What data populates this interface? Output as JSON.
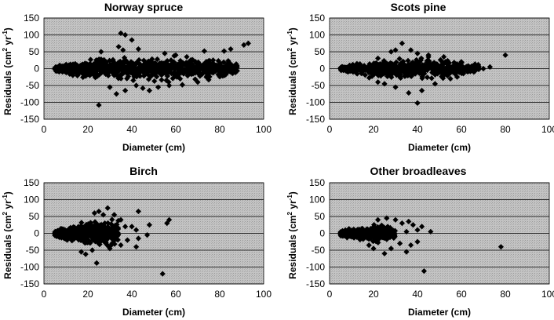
{
  "chart_data": [
    {
      "type": "scatter",
      "title": "Norway spruce",
      "xlabel": "Diameter (cm)",
      "ylabel_parts": [
        "Residuals (cm",
        "2",
        " yr",
        "-1",
        ")"
      ],
      "xlim": [
        0,
        100
      ],
      "ylim": [
        -150,
        150
      ],
      "xticks": [
        0,
        20,
        40,
        60,
        80,
        100
      ],
      "yticks": [
        150,
        100,
        50,
        0,
        -50,
        -100,
        -150
      ],
      "grid": "horizontal",
      "background": "#c0c0c0",
      "marker": "diamond",
      "marker_color": "#000000",
      "cloud": {
        "xmin": 5,
        "xmax": 88,
        "n": 900,
        "spread": [
          [
            5,
            4
          ],
          [
            20,
            16
          ],
          [
            40,
            20
          ],
          [
            60,
            18
          ],
          [
            80,
            14
          ],
          [
            88,
            8
          ]
        ]
      },
      "points": [
        [
          35,
          105
        ],
        [
          37,
          100
        ],
        [
          40,
          85
        ],
        [
          34,
          65
        ],
        [
          43,
          58
        ],
        [
          36,
          55
        ],
        [
          26,
          50
        ],
        [
          73,
          52
        ],
        [
          82,
          52
        ],
        [
          85,
          58
        ],
        [
          91,
          70
        ],
        [
          93,
          75
        ],
        [
          60,
          40
        ],
        [
          65,
          35
        ],
        [
          77,
          25
        ],
        [
          55,
          45
        ],
        [
          25,
          -108
        ],
        [
          33,
          -75
        ],
        [
          37,
          -65
        ],
        [
          45,
          -58
        ],
        [
          48,
          -65
        ],
        [
          52,
          -55
        ],
        [
          57,
          -50
        ],
        [
          63,
          -48
        ],
        [
          70,
          -40
        ],
        [
          75,
          -33
        ],
        [
          42,
          -50
        ],
        [
          30,
          -55
        ],
        [
          62,
          -30
        ]
      ]
    },
    {
      "type": "scatter",
      "title": "Scots pine",
      "xlabel": "Diameter (cm)",
      "ylabel_parts": [
        "Residuals (cm",
        "2",
        " yr",
        "-1",
        ")"
      ],
      "xlim": [
        0,
        100
      ],
      "ylim": [
        -150,
        150
      ],
      "xticks": [
        0,
        20,
        40,
        60,
        80,
        100
      ],
      "yticks": [
        150,
        100,
        50,
        0,
        -50,
        -100,
        -150
      ],
      "grid": "horizontal",
      "background": "#c0c0c0",
      "marker": "diamond",
      "marker_color": "#000000",
      "cloud": {
        "xmin": 5,
        "xmax": 68,
        "n": 650,
        "spread": [
          [
            5,
            3
          ],
          [
            20,
            14
          ],
          [
            35,
            18
          ],
          [
            50,
            16
          ],
          [
            60,
            12
          ],
          [
            68,
            8
          ]
        ]
      },
      "points": [
        [
          33,
          75
        ],
        [
          30,
          55
        ],
        [
          28,
          50
        ],
        [
          37,
          55
        ],
        [
          40,
          45
        ],
        [
          45,
          40
        ],
        [
          52,
          35
        ],
        [
          80,
          40
        ],
        [
          73,
          5
        ],
        [
          70,
          0
        ],
        [
          40,
          -102
        ],
        [
          36,
          -72
        ],
        [
          42,
          -65
        ],
        [
          30,
          -55
        ],
        [
          25,
          -45
        ],
        [
          48,
          -45
        ],
        [
          55,
          -30
        ],
        [
          22,
          -40
        ]
      ]
    },
    {
      "type": "scatter",
      "title": "Birch",
      "xlabel": "Diameter (cm)",
      "ylabel_parts": [
        "Residuals (cm",
        "2",
        " yr",
        "-1",
        ")"
      ],
      "xlim": [
        0,
        100
      ],
      "ylim": [
        -150,
        150
      ],
      "xticks": [
        0,
        20,
        40,
        60,
        80,
        100
      ],
      "yticks": [
        150,
        100,
        50,
        0,
        -50,
        -100,
        -150
      ],
      "grid": "horizontal",
      "background": "#c0c0c0",
      "marker": "diamond",
      "marker_color": "#000000",
      "cloud": {
        "xmin": 5,
        "xmax": 34,
        "n": 600,
        "spread": [
          [
            5,
            4
          ],
          [
            12,
            12
          ],
          [
            20,
            20
          ],
          [
            28,
            22
          ],
          [
            34,
            18
          ]
        ]
      },
      "points": [
        [
          29,
          75
        ],
        [
          25,
          65
        ],
        [
          23,
          60
        ],
        [
          27,
          55
        ],
        [
          32,
          55
        ],
        [
          43,
          65
        ],
        [
          35,
          40
        ],
        [
          40,
          20
        ],
        [
          42,
          10
        ],
        [
          43,
          -15
        ],
        [
          37,
          20
        ],
        [
          48,
          25
        ],
        [
          57,
          40
        ],
        [
          56,
          30
        ],
        [
          47,
          -5
        ],
        [
          54,
          -120
        ],
        [
          24,
          -88
        ],
        [
          19,
          -62
        ],
        [
          17,
          -55
        ],
        [
          22,
          -50
        ],
        [
          30,
          -45
        ],
        [
          35,
          -35
        ],
        [
          42,
          -40
        ],
        [
          38,
          -20
        ],
        [
          31,
          -30
        ]
      ]
    },
    {
      "type": "scatter",
      "title": "Other broadleaves",
      "xlabel": "Diameter (cm)",
      "ylabel_parts": [
        "Residuals (cm",
        "2",
        " yr",
        "-1",
        ")"
      ],
      "xlim": [
        0,
        100
      ],
      "ylim": [
        -150,
        150
      ],
      "xticks": [
        0,
        20,
        40,
        60,
        80,
        100
      ],
      "yticks": [
        150,
        100,
        50,
        0,
        -50,
        -100,
        -150
      ],
      "grid": "horizontal",
      "background": "#c0c0c0",
      "marker": "diamond",
      "marker_color": "#000000",
      "cloud": {
        "xmin": 5,
        "xmax": 30,
        "n": 420,
        "spread": [
          [
            5,
            4
          ],
          [
            12,
            10
          ],
          [
            20,
            14
          ],
          [
            26,
            12
          ],
          [
            30,
            8
          ]
        ]
      },
      "points": [
        [
          26,
          45
        ],
        [
          22,
          40
        ],
        [
          30,
          40
        ],
        [
          33,
          30
        ],
        [
          36,
          35
        ],
        [
          38,
          25
        ],
        [
          42,
          20
        ],
        [
          46,
          5
        ],
        [
          40,
          10
        ],
        [
          35,
          5
        ],
        [
          78,
          -40
        ],
        [
          43,
          -112
        ],
        [
          25,
          -60
        ],
        [
          20,
          -45
        ],
        [
          28,
          -45
        ],
        [
          35,
          -55
        ],
        [
          37,
          -35
        ],
        [
          40,
          -25
        ],
        [
          32,
          -30
        ]
      ]
    }
  ]
}
